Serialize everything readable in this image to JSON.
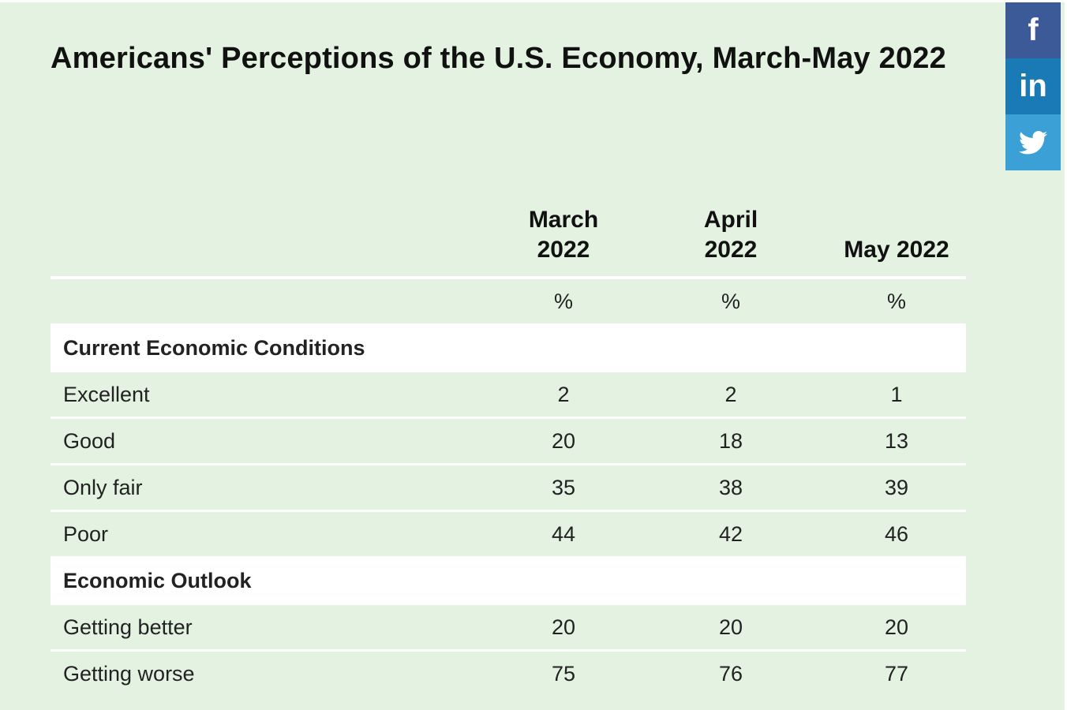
{
  "title": "Americans' Perceptions of the U.S. Economy, March-May 2022",
  "social": {
    "facebook": "f",
    "linkedin": "in",
    "twitter_icon": "twitter-bird-icon"
  },
  "columns": [
    "March 2022",
    "April 2022",
    "May 2022"
  ],
  "units": [
    "%",
    "%",
    "%"
  ],
  "sections": [
    {
      "heading": "Current Economic Conditions",
      "rows": [
        {
          "label": "Excellent",
          "values": [
            "2",
            "2",
            "1"
          ]
        },
        {
          "label": "Good",
          "values": [
            "20",
            "18",
            "13"
          ]
        },
        {
          "label": "Only fair",
          "values": [
            "35",
            "38",
            "39"
          ]
        },
        {
          "label": "Poor",
          "values": [
            "44",
            "42",
            "46"
          ]
        }
      ]
    },
    {
      "heading": "Economic Outlook",
      "rows": [
        {
          "label": "Getting better",
          "values": [
            "20",
            "20",
            "20"
          ]
        },
        {
          "label": "Getting worse",
          "values": [
            "75",
            "76",
            "77"
          ]
        }
      ]
    }
  ]
}
